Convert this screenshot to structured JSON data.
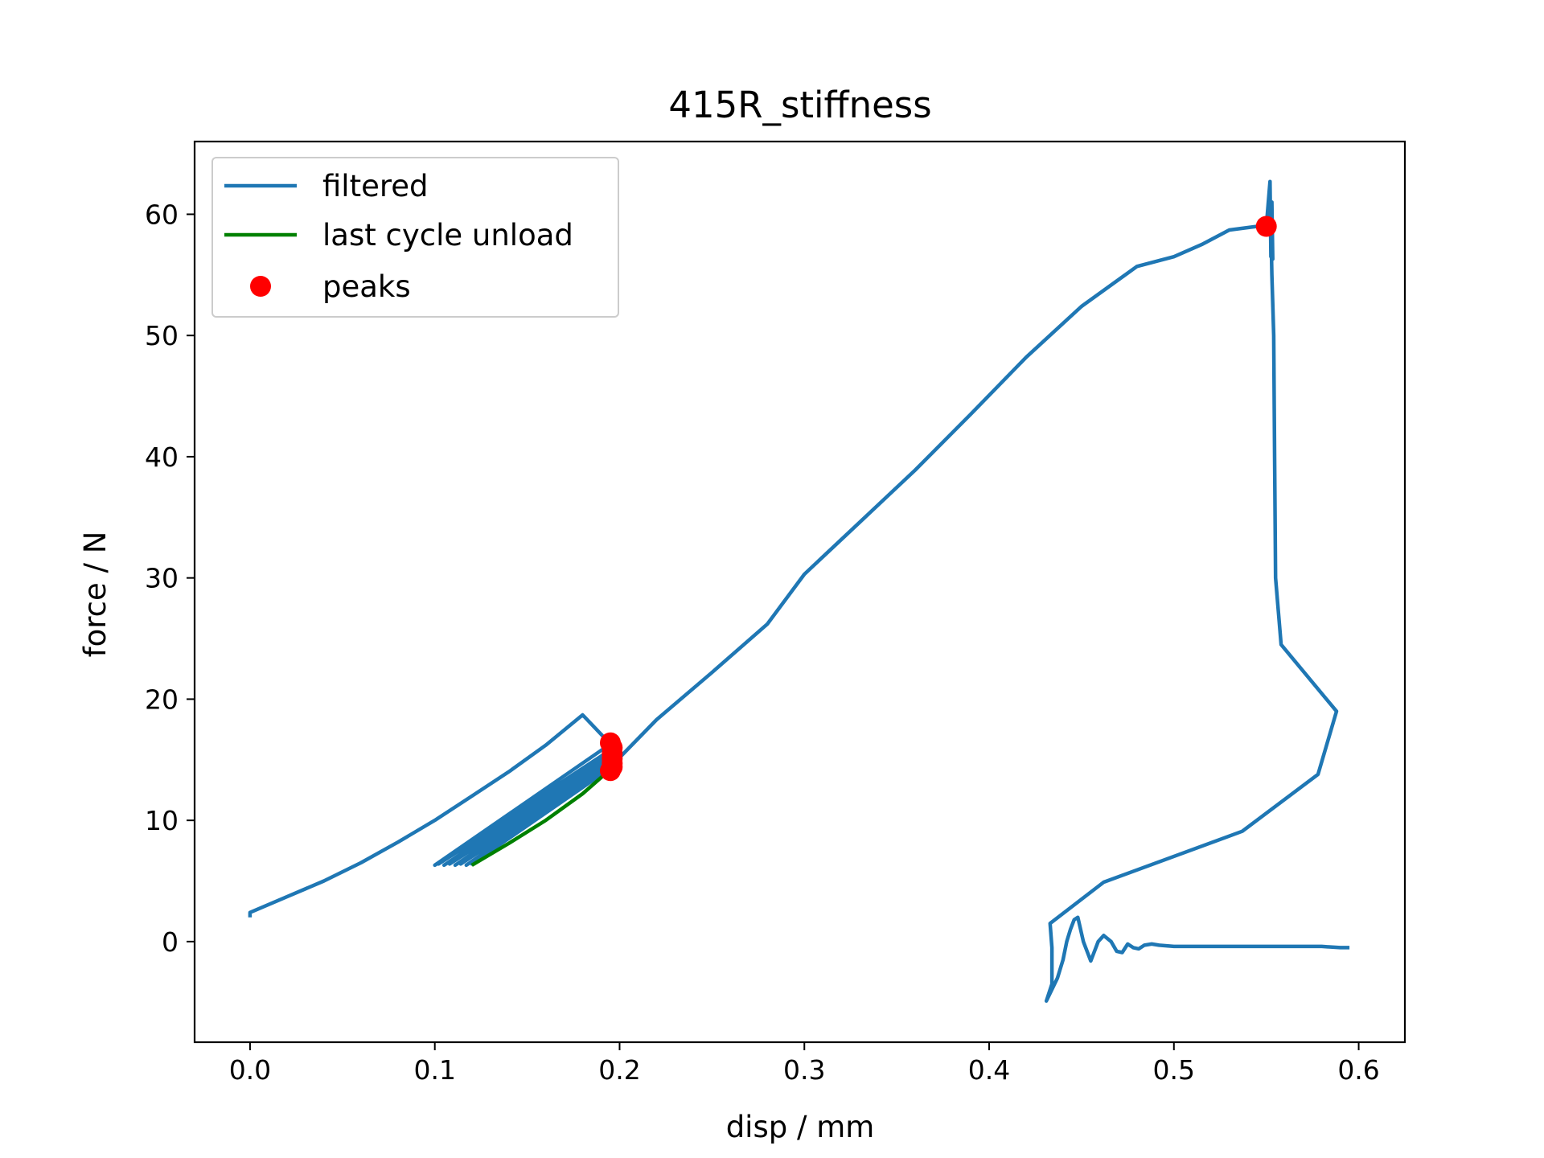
{
  "chart_data": {
    "type": "line",
    "title": "415R_stiffness",
    "xlabel": "disp / mm",
    "ylabel": "force / N",
    "xlim": [
      -0.03,
      0.625
    ],
    "ylim": [
      -8.3,
      66
    ],
    "xticks": [
      0.0,
      0.1,
      0.2,
      0.3,
      0.4,
      0.5,
      0.6
    ],
    "xtick_labels": [
      "0.0",
      "0.1",
      "0.2",
      "0.3",
      "0.4",
      "0.5",
      "0.6"
    ],
    "yticks": [
      0,
      10,
      20,
      30,
      40,
      50,
      60
    ],
    "ytick_labels": [
      "0",
      "10",
      "20",
      "30",
      "40",
      "50",
      "60"
    ],
    "grid": false,
    "legend_position": "top-left",
    "colors": {
      "filtered": "#1f77b4",
      "unload": "#008000",
      "peaks": "#ff0000"
    },
    "series": [
      {
        "name": "filtered",
        "kind": "line",
        "color": "#1f77b4",
        "x": [
          0.0,
          0.0,
          0.02,
          0.04,
          0.06,
          0.08,
          0.1,
          0.12,
          0.14,
          0.16,
          0.18,
          0.195,
          0.1,
          0.195,
          0.102,
          0.195,
          0.105,
          0.195,
          0.108,
          0.195,
          0.111,
          0.195,
          0.114,
          0.195,
          0.117,
          0.195,
          0.12,
          0.195,
          0.22,
          0.25,
          0.28,
          0.3,
          0.33,
          0.36,
          0.39,
          0.42,
          0.45,
          0.48,
          0.5,
          0.515,
          0.53,
          0.545,
          0.55,
          0.552,
          0.5525,
          0.553,
          0.5535,
          0.5525,
          0.553,
          0.554,
          0.5545,
          0.555,
          0.558,
          0.588,
          0.578,
          0.537,
          0.462,
          0.433,
          0.434,
          0.434,
          0.431,
          0.437,
          0.44,
          0.442,
          0.444,
          0.446,
          0.448,
          0.451,
          0.455,
          0.459,
          0.462,
          0.466,
          0.469,
          0.472,
          0.475,
          0.478,
          0.481,
          0.484,
          0.488,
          0.492,
          0.5,
          0.52,
          0.54,
          0.56,
          0.58,
          0.59,
          0.595
        ],
        "y": [
          2.0,
          2.4,
          3.7,
          5.0,
          6.5,
          8.2,
          10.0,
          12.0,
          14.0,
          16.2,
          18.7,
          16.3,
          6.3,
          15.8,
          6.4,
          15.5,
          6.3,
          15.2,
          6.4,
          14.9,
          6.3,
          14.7,
          6.4,
          14.5,
          6.3,
          14.3,
          6.4,
          14.4,
          18.3,
          22.2,
          26.2,
          30.3,
          34.6,
          38.9,
          43.5,
          48.2,
          52.4,
          55.7,
          56.5,
          57.5,
          58.7,
          59.0,
          59.0,
          62.7,
          56.5,
          61.0,
          56.3,
          59.0,
          55.0,
          50.0,
          40.0,
          30.0,
          24.5,
          19.0,
          13.8,
          9.1,
          4.9,
          1.5,
          -0.5,
          -3.5,
          -4.9,
          -3.0,
          -1.5,
          0.0,
          1.0,
          1.8,
          2.0,
          0.0,
          -1.6,
          0.0,
          0.5,
          0.0,
          -0.8,
          -0.9,
          -0.2,
          -0.5,
          -0.6,
          -0.3,
          -0.2,
          -0.3,
          -0.4,
          -0.4,
          -0.4,
          -0.4,
          -0.4,
          -0.5,
          -0.5
        ]
      },
      {
        "name": "last cycle unload",
        "kind": "line",
        "color": "#008000",
        "x": [
          0.12,
          0.14,
          0.16,
          0.18,
          0.195
        ],
        "y": [
          6.3,
          8.1,
          10.0,
          12.2,
          14.2
        ]
      },
      {
        "name": "peaks",
        "kind": "scatter",
        "color": "#ff0000",
        "x": [
          0.195,
          0.196,
          0.196,
          0.196,
          0.196,
          0.196,
          0.195,
          0.55
        ],
        "y": [
          16.4,
          16.0,
          15.5,
          15.1,
          14.7,
          14.4,
          14.1,
          59.0
        ]
      }
    ],
    "legend": [
      "filtered",
      "last cycle unload",
      "peaks"
    ]
  }
}
